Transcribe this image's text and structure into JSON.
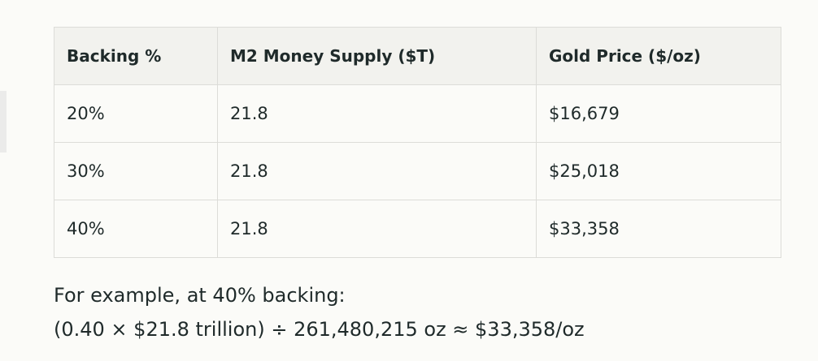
{
  "table": {
    "header": [
      "Backing %",
      "M2 Money Supply ($T)",
      "Gold Price ($/oz)"
    ],
    "rows": [
      [
        "20%",
        "21.8",
        "$16,679"
      ],
      [
        "30%",
        "21.8",
        "$25,018"
      ],
      [
        "40%",
        "21.8",
        "$33,358"
      ]
    ]
  },
  "text": {
    "lines": [
      "For example, at 40% backing:",
      "(0.40 × $21.8 trillion) ÷ 261,480,215 oz ≈ $33,358/oz"
    ]
  }
}
